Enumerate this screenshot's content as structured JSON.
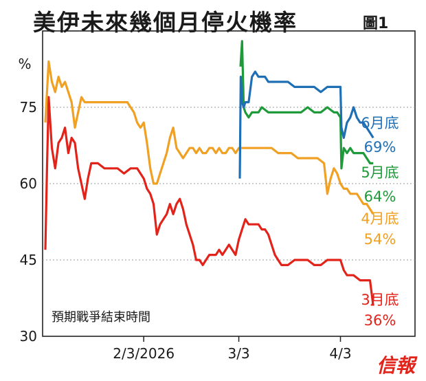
{
  "header": {
    "title": "美伊未來幾個月停火機率",
    "figure_label": "圖1"
  },
  "brand": {
    "logo_text": "信報"
  },
  "chart_data": {
    "type": "line",
    "title": "美伊未來幾個月停火機率",
    "ylabel": "%",
    "annotation": "預期戰爭結束時間",
    "ylim": [
      30,
      90
    ],
    "yticks": [
      30,
      45,
      60,
      75
    ],
    "xticks": [
      {
        "label": "2/3/2026",
        "x": 40
      },
      {
        "label": "3/3",
        "x": 69
      },
      {
        "label": "4/3",
        "x": 100
      }
    ],
    "xlim": [
      10,
      111
    ],
    "grid": true,
    "series": [
      {
        "name": "6月底",
        "end_label": "69%",
        "color": "#1f6fb5",
        "x": [
          69.3,
          69.6,
          70,
          70.5,
          71,
          72,
          73,
          74,
          75,
          76,
          77,
          78,
          80,
          82,
          84,
          86,
          88,
          90,
          92,
          94,
          96,
          98,
          99,
          100,
          100.3,
          101,
          102,
          103,
          104,
          105,
          106,
          107,
          108,
          109,
          110
        ],
        "y": [
          61,
          81,
          76,
          75,
          76,
          76,
          81,
          82,
          81,
          81,
          81,
          80,
          80,
          80,
          80,
          79,
          79,
          79,
          79,
          78,
          79,
          79,
          79,
          79,
          71,
          69,
          72,
          73,
          75,
          73,
          72,
          72,
          71,
          70,
          69
        ]
      },
      {
        "name": "5月底",
        "end_label": "64%",
        "color": "#1e9a3a",
        "x": [
          69.5,
          70,
          70.5,
          71,
          72,
          73,
          74,
          75,
          76,
          78,
          80,
          82,
          84,
          86,
          88,
          90,
          92,
          94,
          96,
          98,
          99,
          100,
          100.3,
          101,
          102,
          103,
          104,
          105,
          106,
          107,
          108,
          109,
          110
        ],
        "y": [
          83,
          88,
          75,
          74,
          73,
          74,
          74,
          74,
          75,
          74,
          74,
          74,
          74,
          74,
          74,
          75,
          74,
          74,
          75,
          74,
          74,
          73,
          63,
          67,
          66,
          67,
          66,
          66,
          66,
          66,
          65,
          64,
          64
        ]
      },
      {
        "name": "4月底",
        "end_label": "54%",
        "color": "#f0a022",
        "x": [
          10,
          11,
          12,
          13,
          14,
          15,
          16,
          17,
          18,
          19,
          20,
          21,
          22,
          23,
          25,
          27,
          29,
          31,
          33,
          35,
          37,
          38,
          39,
          40,
          41,
          42,
          43,
          44,
          45,
          46,
          47,
          48,
          49,
          50,
          51,
          52,
          53,
          54,
          55,
          56,
          57,
          58,
          59,
          60,
          61,
          62,
          63,
          64,
          65,
          66,
          67,
          68,
          69,
          71,
          73,
          75,
          77,
          79,
          81,
          83,
          85,
          87,
          89,
          91,
          93,
          95,
          96,
          97,
          98,
          99,
          100,
          101,
          102,
          103,
          104,
          105,
          106,
          107,
          108,
          109,
          110
        ],
        "y": [
          72,
          84,
          80,
          78,
          81,
          79,
          80,
          78,
          76,
          71,
          74,
          77,
          76,
          76,
          76,
          76,
          76,
          76,
          76,
          76,
          74,
          72,
          71,
          72,
          68,
          63,
          60,
          60,
          62,
          64,
          66,
          69,
          71,
          67,
          66,
          65,
          66,
          67,
          67,
          66,
          67,
          66,
          66,
          67,
          67,
          66,
          67,
          66,
          66,
          67,
          67,
          66,
          67,
          67,
          67,
          67,
          67,
          67,
          66,
          66,
          66,
          65,
          65,
          65,
          65,
          64,
          58,
          61,
          63,
          62,
          60,
          59,
          59,
          58,
          58,
          58,
          57,
          56,
          56,
          55,
          54
        ]
      },
      {
        "name": "3月底",
        "end_label": "36%",
        "color": "#e2231a",
        "x": [
          10,
          10.5,
          11,
          12,
          13,
          14,
          15,
          16,
          17,
          18,
          19,
          20,
          21,
          22,
          23,
          24,
          26,
          28,
          30,
          32,
          34,
          36,
          38,
          40,
          41,
          42,
          43,
          44,
          45,
          46,
          47,
          48,
          49,
          50,
          51,
          52,
          53,
          54,
          55,
          56,
          57,
          58,
          59,
          60,
          61,
          62,
          63,
          64,
          65,
          66,
          67,
          68,
          69,
          70,
          71,
          72,
          73,
          74,
          75,
          76,
          77,
          78,
          79,
          80,
          81,
          82,
          84,
          86,
          88,
          90,
          92,
          94,
          96,
          98,
          100,
          101,
          102,
          103,
          104,
          106,
          108,
          109,
          110
        ],
        "y": [
          47,
          63,
          77,
          67,
          63,
          68,
          69,
          71,
          66,
          69,
          68,
          63,
          60,
          57,
          61,
          64,
          64,
          63,
          63,
          63,
          62,
          63,
          63,
          61,
          59,
          58,
          56,
          50,
          52,
          53,
          54,
          56,
          54,
          56,
          57,
          55,
          52,
          50,
          48,
          45,
          45,
          44,
          45,
          46,
          46,
          46,
          47,
          46,
          47,
          48,
          47,
          46,
          49,
          51,
          53,
          52,
          52,
          52,
          52,
          51,
          51,
          50,
          48,
          46,
          45,
          44,
          44,
          45,
          45,
          45,
          44,
          44,
          45,
          45,
          45,
          43,
          42,
          42,
          42,
          41,
          41,
          41,
          36
        ]
      }
    ]
  }
}
